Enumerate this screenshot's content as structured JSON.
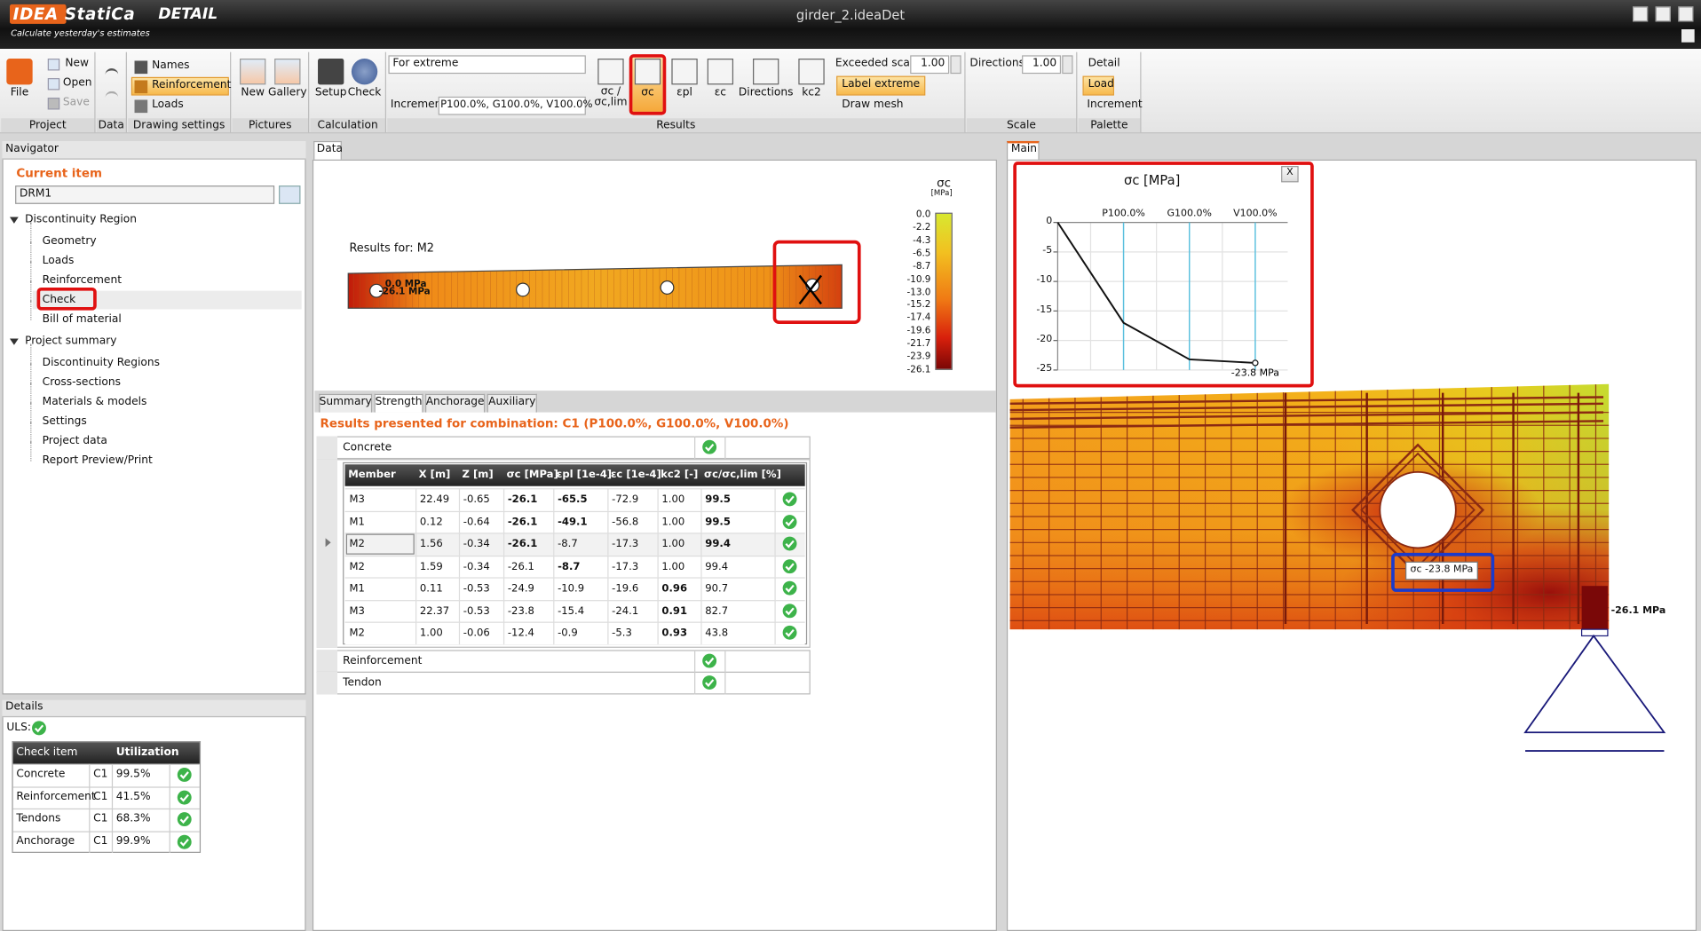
{
  "app": {
    "logo": "IDEA StatiCa",
    "product": "DETAIL",
    "tagline": "Calculate yesterday's estimates",
    "file_name": "girder_2.ideaDet"
  },
  "ribbon": {
    "groups": [
      "Project",
      "Data",
      "Drawing settings",
      "Pictures",
      "Calculation",
      "Results",
      "Scale",
      "Palette"
    ],
    "project": [
      "File",
      "New",
      "Open",
      "Save"
    ],
    "drawing_settings": [
      "Names",
      "Reinforcement",
      "Loads"
    ],
    "pictures": [
      "New",
      "Gallery"
    ],
    "calculation": [
      "Setup",
      "Check"
    ],
    "results": {
      "extreme": "For extreme",
      "increment_label": "Increment",
      "increment": "P100.0%, G100.0%, V100.0%",
      "buttons": [
        "σc / σc,lim",
        "σc",
        "εpl",
        "εc",
        "Directions",
        "kc2"
      ],
      "exceeded_scale": "Exceeded scale",
      "exceeded_value": "1.00",
      "label_extreme": "Label extreme",
      "draw_mesh": "Draw mesh"
    },
    "scale": {
      "label": "Directions",
      "value": "1.00"
    },
    "palette": [
      "Detail",
      "Load",
      "Increment"
    ]
  },
  "navigator": {
    "title": "Navigator",
    "current_item_label": "Current item",
    "current_item": "DRM1",
    "tree": [
      {
        "label": "Discontinuity Region",
        "children": [
          "Geometry",
          "Loads",
          "Reinforcement",
          "Check",
          "Bill of material"
        ]
      },
      {
        "label": "Project summary",
        "children": [
          "Discontinuity Regions",
          "Cross-sections",
          "Materials & models",
          "Settings",
          "Project data",
          "Report Preview/Print"
        ]
      }
    ]
  },
  "details": {
    "title": "Details",
    "uls": "ULS:",
    "columns": [
      "Check item",
      "Utilization"
    ],
    "rows": [
      [
        "Concrete",
        "C1",
        "99.5%"
      ],
      [
        "Reinforcement",
        "C1",
        "41.5%"
      ],
      [
        "Tendons",
        "C1",
        "68.3%"
      ],
      [
        "Anchorage",
        "C1",
        "99.9%"
      ]
    ]
  },
  "data_panel": {
    "tab": "Data",
    "results_for": "Results for: M2",
    "beam_labels": [
      "0.0 MPa",
      "-26.1 MPa"
    ],
    "colorbar": {
      "title": "σc",
      "unit": "[MPa]",
      "labels": [
        "0.0",
        "-2.2",
        "-4.3",
        "-6.5",
        "-8.7",
        "-10.9",
        "-13.0",
        "-15.2",
        "-17.4",
        "-19.6",
        "-21.7",
        "-23.9",
        "-26.1"
      ]
    },
    "tabs": [
      "Summary",
      "Strength",
      "Anchorage",
      "Auxiliary"
    ],
    "combination": "Results presented for combination: C1 (P100.0%, G100.0%, V100.0%)",
    "sections": [
      "Concrete",
      "Reinforcement",
      "Tendon"
    ],
    "table": {
      "columns": [
        "Member",
        "X [m]",
        "Z [m]",
        "σc [MPa]",
        "εpl [1e-4]",
        "εc [1e-4]",
        "kc2 [-]",
        "σc/σc,lim [%]"
      ],
      "rows": [
        [
          "M3",
          "22.49",
          "-0.65",
          "-26.1",
          "-65.5",
          "-72.9",
          "1.00",
          "99.5"
        ],
        [
          "M1",
          "0.12",
          "-0.64",
          "-26.1",
          "-49.1",
          "-56.8",
          "1.00",
          "99.5"
        ],
        [
          "M2",
          "1.56",
          "-0.34",
          "-26.1",
          "-8.7",
          "-17.3",
          "1.00",
          "99.4"
        ],
        [
          "M2",
          "1.59",
          "-0.34",
          "-26.1",
          "-8.7",
          "-17.3",
          "1.00",
          "99.4"
        ],
        [
          "M1",
          "0.11",
          "-0.53",
          "-24.9",
          "-10.9",
          "-19.6",
          "0.96",
          "90.7"
        ],
        [
          "M3",
          "22.37",
          "-0.53",
          "-23.8",
          "-15.4",
          "-24.1",
          "0.91",
          "82.7"
        ],
        [
          "M2",
          "1.00",
          "-0.06",
          "-12.4",
          "-0.9",
          "-5.3",
          "0.93",
          "43.8"
        ]
      ]
    }
  },
  "main_panel": {
    "tab": "Main",
    "probe_label": "σc -23.8 MPa",
    "extreme_label": "-26.1 MPa",
    "close": "X",
    "stress_chart": {
      "type": "line",
      "title": "σc [MPa]",
      "categories": [
        null,
        "P100.0%",
        "G100.0%",
        "V100.0%"
      ],
      "values": [
        0,
        -17,
        -23.2,
        -23.8
      ],
      "value_labels": [
        null,
        null,
        null,
        "-23.8 MPa"
      ],
      "color": "#111111",
      "ylim": [
        -25,
        0
      ],
      "yticks": [
        0,
        -5,
        -10,
        -15,
        -20,
        -25
      ],
      "grid": true
    }
  }
}
